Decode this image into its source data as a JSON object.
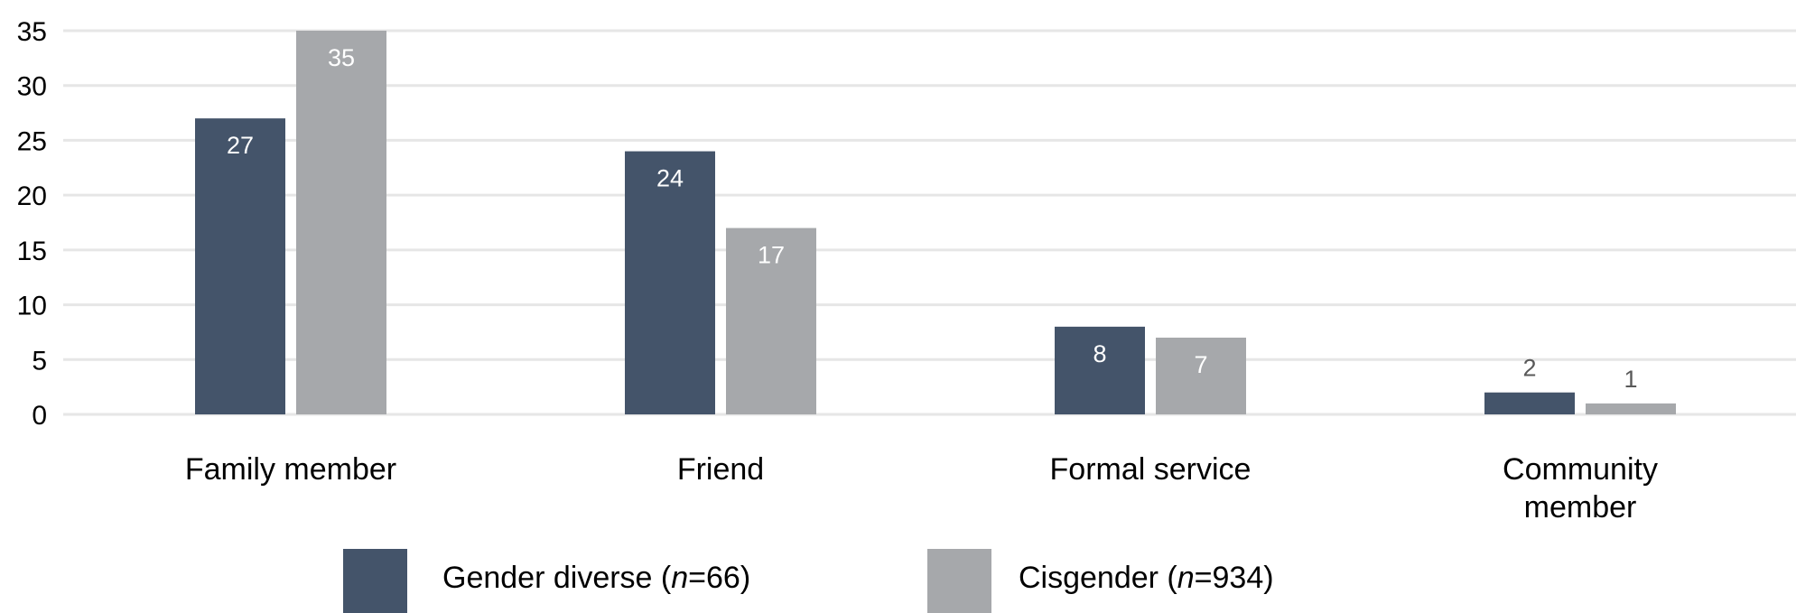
{
  "chart_data": {
    "type": "bar",
    "categories": [
      [
        "Family member"
      ],
      [
        "Friend"
      ],
      [
        "Formal service"
      ],
      [
        "Community",
        "member"
      ]
    ],
    "series": [
      {
        "name_prefix": "Gender diverse (",
        "name_n": "n",
        "name_suffix": "=66)",
        "color": "#44546a",
        "values": [
          27,
          24,
          8,
          2
        ]
      },
      {
        "name_prefix": "Cisgender (",
        "name_n": "n",
        "name_suffix": "=934)",
        "color": "#a6a8ab",
        "values": [
          35,
          17,
          7,
          1
        ]
      }
    ],
    "yticks": [
      0,
      5,
      10,
      15,
      20,
      25,
      30,
      35
    ],
    "ylim": [
      0,
      35
    ],
    "grid": true,
    "legend_position": "bottom",
    "data_label_colors": {
      "inside": "#ffffff",
      "outside": "#595959"
    }
  }
}
